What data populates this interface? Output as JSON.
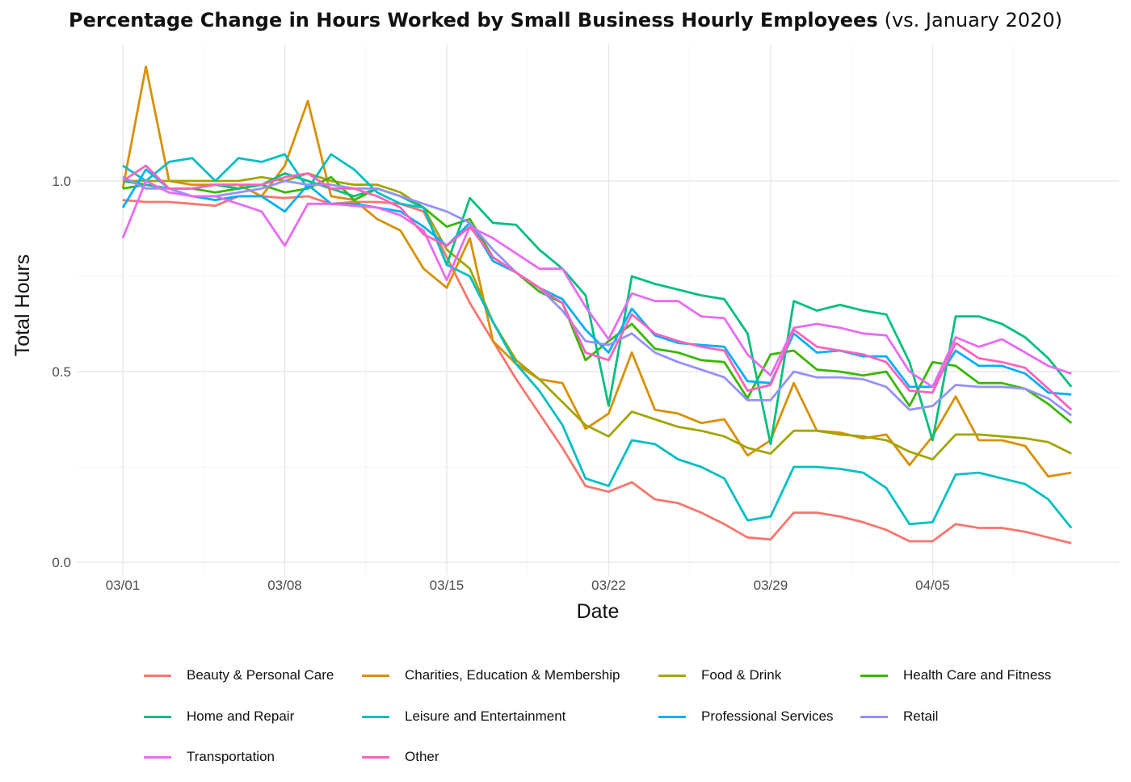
{
  "chart_data": {
    "type": "line",
    "title": "Percentage Change in Hours Worked by Small Business Hourly Employees",
    "subtitle": "(vs. January 2020)",
    "xlabel": "Date",
    "ylabel": "Total Hours",
    "x_start": "2020-03-01",
    "x_tick_labels": [
      "03/01",
      "03/08",
      "03/15",
      "03/22",
      "03/29",
      "04/05"
    ],
    "x_tick_days": [
      0,
      7,
      14,
      21,
      28,
      35
    ],
    "y_ticks": [
      0.0,
      0.5,
      1.0
    ],
    "y_tick_labels": [
      "0.0",
      "0.5",
      "1.0"
    ],
    "ylim": [
      0,
      1.32
    ],
    "xlim_days": [
      -2,
      43
    ],
    "grid": true,
    "legend_position": "bottom",
    "series": [
      {
        "name": "Beauty & Personal Care",
        "color": "#F8766D",
        "values": [
          0.95,
          0.945,
          0.945,
          0.94,
          0.935,
          0.96,
          0.96,
          0.955,
          0.96,
          0.94,
          0.945,
          0.945,
          0.94,
          0.92,
          0.8,
          0.68,
          0.58,
          0.48,
          0.39,
          0.3,
          0.2,
          0.185,
          0.21,
          0.165,
          0.155,
          0.13,
          0.1,
          0.065,
          0.06,
          0.13,
          0.13,
          0.12,
          0.105,
          0.085,
          0.055,
          0.055,
          0.1,
          0.09,
          0.09,
          0.08,
          0.065,
          0.05
        ]
      },
      {
        "name": "Charities, Education & Membership",
        "color": "#D89000",
        "values": [
          0.98,
          1.3,
          1.0,
          0.99,
          0.99,
          0.99,
          0.96,
          1.04,
          1.21,
          0.96,
          0.95,
          0.9,
          0.87,
          0.77,
          0.72,
          0.85,
          0.58,
          0.52,
          0.48,
          0.47,
          0.35,
          0.39,
          0.55,
          0.4,
          0.39,
          0.365,
          0.375,
          0.28,
          0.32,
          0.47,
          0.345,
          0.34,
          0.325,
          0.335,
          0.255,
          0.33,
          0.435,
          0.32,
          0.32,
          0.305,
          0.225,
          0.235
        ]
      },
      {
        "name": "Food & Drink",
        "color": "#A3A500",
        "values": [
          1.0,
          1.0,
          1.0,
          1.0,
          1.0,
          1.0,
          1.01,
          1.0,
          1.02,
          1.0,
          0.99,
          0.99,
          0.97,
          0.93,
          0.82,
          0.77,
          0.63,
          0.53,
          0.48,
          0.42,
          0.36,
          0.33,
          0.395,
          0.375,
          0.355,
          0.345,
          0.33,
          0.3,
          0.285,
          0.345,
          0.345,
          0.335,
          0.33,
          0.32,
          0.29,
          0.27,
          0.335,
          0.335,
          0.33,
          0.325,
          0.315,
          0.285
        ]
      },
      {
        "name": "Health Care and Fitness",
        "color": "#39B600",
        "values": [
          0.98,
          0.99,
          0.98,
          0.98,
          0.97,
          0.98,
          0.99,
          0.97,
          0.98,
          1.01,
          0.95,
          0.98,
          0.96,
          0.93,
          0.88,
          0.9,
          0.8,
          0.76,
          0.71,
          0.68,
          0.53,
          0.58,
          0.625,
          0.56,
          0.55,
          0.53,
          0.525,
          0.43,
          0.545,
          0.555,
          0.505,
          0.5,
          0.49,
          0.5,
          0.41,
          0.525,
          0.515,
          0.47,
          0.47,
          0.455,
          0.415,
          0.365
        ]
      },
      {
        "name": "Home and Repair",
        "color": "#00BF7D",
        "values": [
          1.0,
          0.99,
          0.98,
          0.98,
          0.99,
          0.98,
          0.99,
          1.02,
          1.0,
          0.98,
          0.96,
          0.98,
          0.96,
          0.93,
          0.78,
          0.955,
          0.89,
          0.885,
          0.82,
          0.77,
          0.7,
          0.41,
          0.75,
          0.73,
          0.715,
          0.7,
          0.69,
          0.6,
          0.31,
          0.685,
          0.66,
          0.675,
          0.66,
          0.65,
          0.525,
          0.32,
          0.645,
          0.645,
          0.625,
          0.59,
          0.535,
          0.46
        ]
      },
      {
        "name": "Leisure and Entertainment",
        "color": "#00BFC4",
        "values": [
          1.04,
          1.0,
          1.05,
          1.06,
          1.0,
          1.06,
          1.05,
          1.07,
          0.98,
          1.07,
          1.03,
          0.97,
          0.94,
          0.93,
          0.78,
          0.75,
          0.63,
          0.52,
          0.45,
          0.36,
          0.22,
          0.2,
          0.32,
          0.31,
          0.27,
          0.25,
          0.22,
          0.11,
          0.12,
          0.25,
          0.25,
          0.245,
          0.235,
          0.195,
          0.1,
          0.105,
          0.23,
          0.235,
          0.22,
          0.205,
          0.165,
          0.09
        ]
      },
      {
        "name": "Professional Services",
        "color": "#00B0F6",
        "values": [
          0.93,
          1.03,
          0.98,
          0.96,
          0.95,
          0.96,
          0.96,
          0.92,
          0.99,
          0.94,
          0.94,
          0.93,
          0.92,
          0.88,
          0.83,
          0.89,
          0.79,
          0.76,
          0.72,
          0.69,
          0.61,
          0.55,
          0.665,
          0.595,
          0.575,
          0.57,
          0.565,
          0.475,
          0.47,
          0.6,
          0.55,
          0.555,
          0.54,
          0.54,
          0.46,
          0.46,
          0.555,
          0.515,
          0.515,
          0.495,
          0.445,
          0.44
        ]
      },
      {
        "name": "Retail",
        "color": "#9590FF",
        "values": [
          1.01,
          0.98,
          0.98,
          0.96,
          0.96,
          0.97,
          0.98,
          1.0,
          0.99,
          0.99,
          0.98,
          0.98,
          0.96,
          0.94,
          0.92,
          0.89,
          0.82,
          0.76,
          0.72,
          0.66,
          0.58,
          0.57,
          0.6,
          0.55,
          0.525,
          0.505,
          0.485,
          0.425,
          0.425,
          0.5,
          0.485,
          0.485,
          0.48,
          0.46,
          0.4,
          0.41,
          0.465,
          0.46,
          0.46,
          0.455,
          0.43,
          0.385
        ]
      },
      {
        "name": "Transportation",
        "color": "#E76BF3",
        "values": [
          0.85,
          1.0,
          0.97,
          0.96,
          0.96,
          0.94,
          0.92,
          0.83,
          0.94,
          0.94,
          0.935,
          0.93,
          0.91,
          0.87,
          0.74,
          0.88,
          0.85,
          0.81,
          0.77,
          0.77,
          0.67,
          0.585,
          0.705,
          0.685,
          0.685,
          0.645,
          0.64,
          0.545,
          0.49,
          0.615,
          0.625,
          0.615,
          0.6,
          0.595,
          0.5,
          0.46,
          0.59,
          0.565,
          0.585,
          0.55,
          0.515,
          0.495
        ]
      },
      {
        "name": "Other",
        "color": "#FF62BC",
        "values": [
          1.0,
          1.04,
          0.98,
          0.98,
          0.99,
          0.99,
          0.99,
          1.01,
          1.02,
          0.98,
          0.98,
          0.96,
          0.93,
          0.86,
          0.83,
          0.88,
          0.8,
          0.76,
          0.72,
          0.68,
          0.55,
          0.53,
          0.65,
          0.6,
          0.58,
          0.565,
          0.555,
          0.45,
          0.465,
          0.61,
          0.565,
          0.555,
          0.545,
          0.525,
          0.45,
          0.445,
          0.575,
          0.535,
          0.525,
          0.51,
          0.455,
          0.4
        ]
      }
    ]
  }
}
